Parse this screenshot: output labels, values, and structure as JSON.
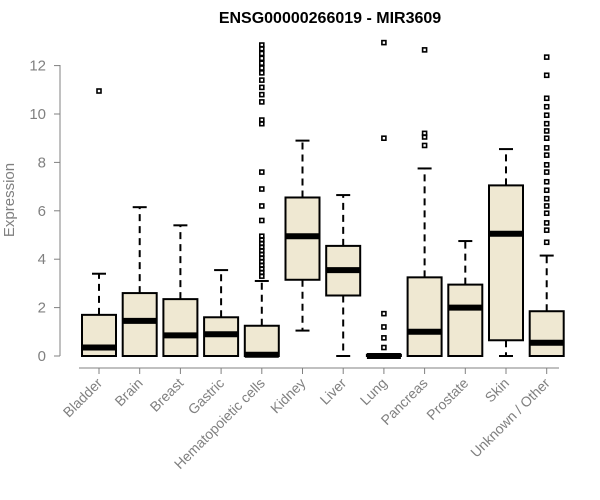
{
  "chart_data": {
    "type": "boxplot",
    "title": "ENSG00000266019 - MIR3609",
    "xlabel": "",
    "ylabel": "Expression",
    "ylim": [
      0,
      12.8
    ],
    "yticks": [
      0,
      2,
      4,
      6,
      8,
      10,
      12
    ],
    "ytick_labels": [
      "0",
      "2",
      "4",
      "6",
      "8",
      "10",
      "12"
    ],
    "grid": false,
    "box_fill": "#efe8d2",
    "categories": [
      "Bladder",
      "Brain",
      "Breast",
      "Gastric",
      "Hematopoietic cells",
      "Kidney",
      "Liver",
      "Lung",
      "Pancreas",
      "Prostate",
      "Skin",
      "Unknown / Other"
    ],
    "boxes": [
      {
        "whisker_low": 0,
        "q1": 0,
        "median": 0.35,
        "q3": 1.7,
        "whisker_high": 3.4,
        "outliers": [
          10.95
        ]
      },
      {
        "whisker_low": 0,
        "q1": 0,
        "median": 1.45,
        "q3": 2.6,
        "whisker_high": 6.15,
        "outliers": []
      },
      {
        "whisker_low": 0,
        "q1": 0,
        "median": 0.85,
        "q3": 2.35,
        "whisker_high": 5.4,
        "outliers": []
      },
      {
        "whisker_low": 0,
        "q1": 0,
        "median": 0.9,
        "q3": 1.6,
        "whisker_high": 3.55,
        "outliers": []
      },
      {
        "whisker_low": 0,
        "q1": 0,
        "median": 0.05,
        "q3": 1.25,
        "whisker_high": 3.1,
        "outliers": [
          3.3,
          3.45,
          3.6,
          3.75,
          3.9,
          4.05,
          4.2,
          4.35,
          4.5,
          4.65,
          4.8,
          4.95,
          5.6,
          6.2,
          6.9,
          7.6,
          9.6,
          9.75,
          10.5,
          10.8,
          11.1,
          11.4,
          11.7,
          11.9,
          12.1,
          12.3,
          12.5,
          12.7,
          12.85
        ]
      },
      {
        "whisker_low": 1.05,
        "q1": 3.15,
        "median": 4.95,
        "q3": 6.55,
        "whisker_high": 8.9,
        "outliers": []
      },
      {
        "whisker_low": 0,
        "q1": 2.5,
        "median": 3.55,
        "q3": 4.55,
        "whisker_high": 6.65,
        "outliers": []
      },
      {
        "whisker_low": 0,
        "q1": 0,
        "median": 0,
        "q3": 0.05,
        "whisker_high": 0.05,
        "outliers": [
          0.35,
          0.75,
          1.2,
          1.75,
          9.0,
          12.95
        ]
      },
      {
        "whisker_low": 0,
        "q1": 0,
        "median": 1.0,
        "q3": 3.25,
        "whisker_high": 7.75,
        "outliers": [
          8.7,
          9.05,
          9.2,
          12.65
        ]
      },
      {
        "whisker_low": 0,
        "q1": 0,
        "median": 2.0,
        "q3": 2.95,
        "whisker_high": 4.75,
        "outliers": []
      },
      {
        "whisker_low": 0,
        "q1": 0.65,
        "median": 5.05,
        "q3": 7.05,
        "whisker_high": 8.55,
        "outliers": []
      },
      {
        "whisker_low": 0,
        "q1": 0,
        "median": 0.55,
        "q3": 1.85,
        "whisker_high": 4.15,
        "outliers": [
          4.7,
          5.2,
          5.5,
          5.9,
          6.2,
          6.5,
          6.85,
          7.2,
          7.6,
          7.9,
          8.3,
          8.6,
          9.0,
          9.3,
          9.6,
          9.95,
          10.3,
          10.65,
          11.6,
          12.35
        ]
      }
    ]
  }
}
